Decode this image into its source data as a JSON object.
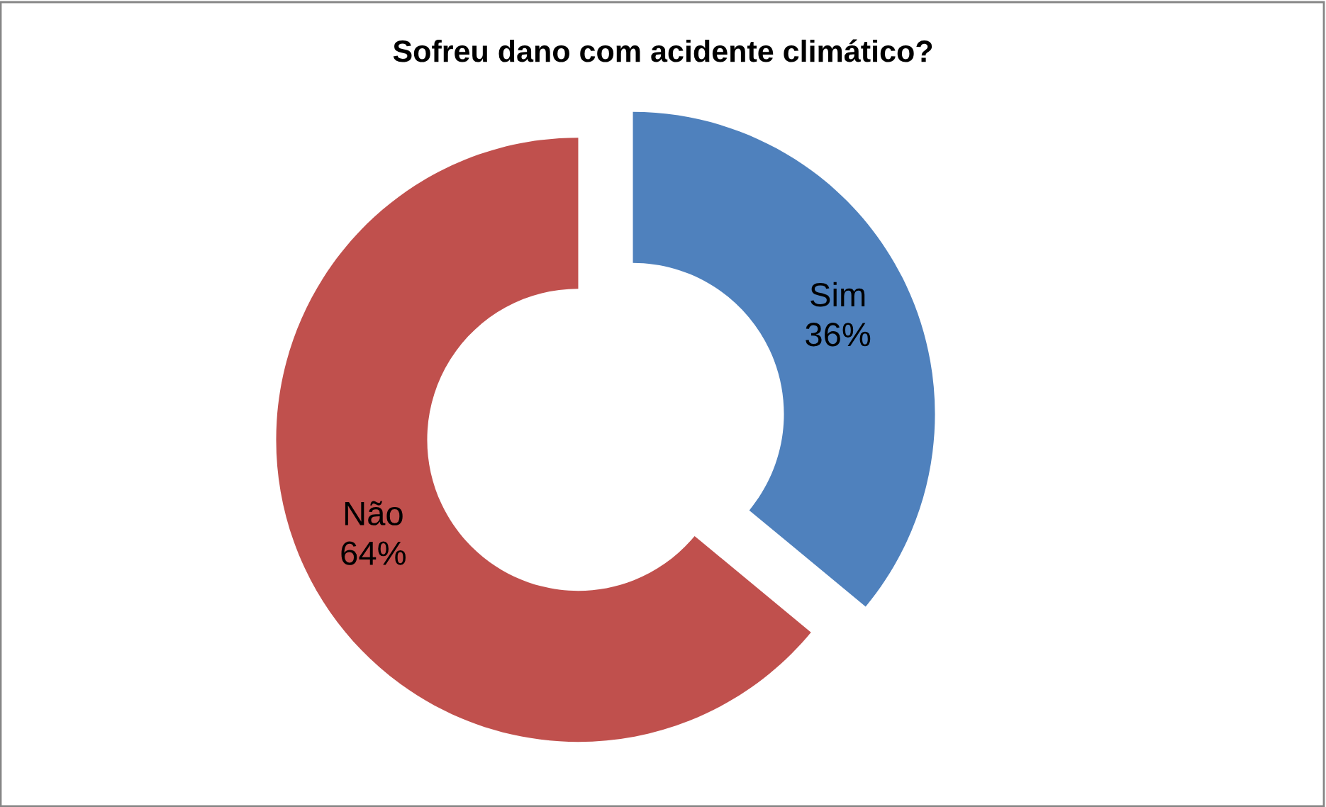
{
  "chart_data": {
    "type": "donut",
    "title": "Sofreu dano com acidente climático?",
    "categories": [
      "Sim",
      "Não"
    ],
    "values": [
      36,
      64
    ],
    "value_labels": [
      "36%",
      "64%"
    ],
    "colors": [
      "#4f81bd",
      "#c0504d"
    ],
    "legend": false
  }
}
